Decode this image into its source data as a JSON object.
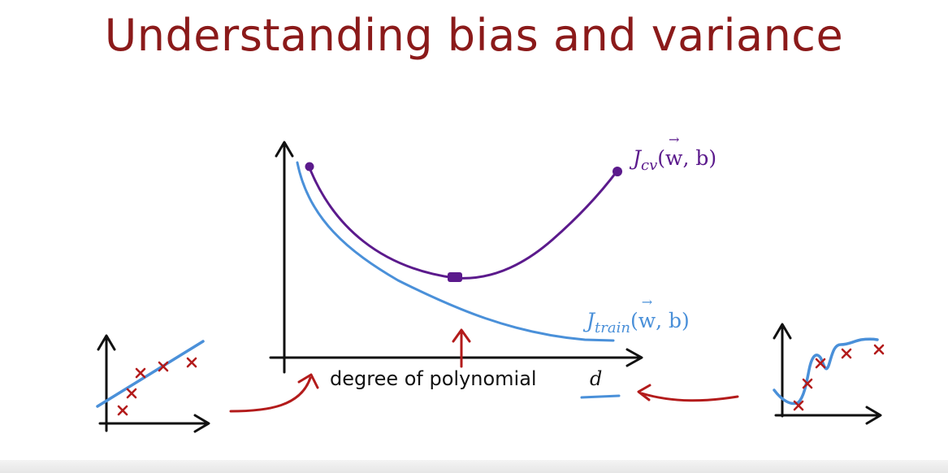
{
  "slide": {
    "title": "Understanding bias and variance",
    "x_axis_label": "degree of polynomial",
    "x_axis_variable": "d",
    "cv_curve_label": {
      "J": "J",
      "sub": "cv",
      "open": "(",
      "w": "w",
      "rest": ", b)"
    },
    "train_curve_label": {
      "J": "J",
      "sub": "train",
      "open": "(",
      "w": "w",
      "rest": ", b)"
    }
  },
  "colors": {
    "title": "#8b1a1a",
    "cv_curve": "#5b1a8c",
    "train_curve": "#4a90d9",
    "annotation_red": "#b31b1b",
    "axes": "#111111"
  },
  "icons": [
    "up-arrow-icon",
    "curved-arrow-icon",
    "data-point-x-icon"
  ]
}
